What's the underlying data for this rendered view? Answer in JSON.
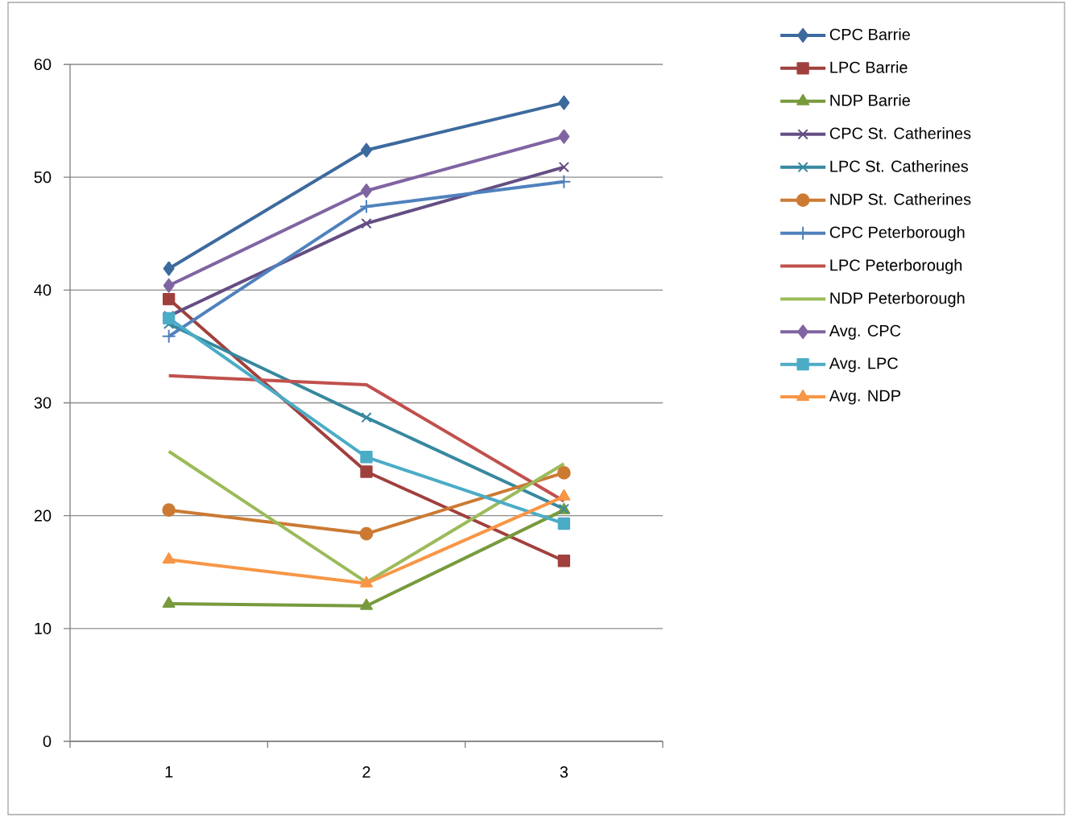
{
  "chart_data": {
    "type": "line",
    "categories": [
      "1",
      "2",
      "3"
    ],
    "series": [
      {
        "name": "CPC Barrie",
        "color": "#3d6a9e",
        "marker": "diamond",
        "values": [
          41.9,
          52.4,
          56.6
        ]
      },
      {
        "name": "LPC Barrie",
        "color": "#a0403d",
        "marker": "square",
        "values": [
          39.2,
          23.9,
          16.0
        ]
      },
      {
        "name": "NDP Barrie",
        "color": "#789a3d",
        "marker": "triangle",
        "values": [
          12.2,
          12.0,
          20.5
        ]
      },
      {
        "name": "CPC St. Catherines",
        "color": "#644e83",
        "marker": "cross",
        "values": [
          37.7,
          45.9,
          50.9
        ]
      },
      {
        "name": "LPC St. Catherines",
        "color": "#36889f",
        "marker": "cross",
        "values": [
          37.0,
          28.7,
          20.6
        ]
      },
      {
        "name": "NDP St. Catherines",
        "color": "#cc7a32",
        "marker": "circle",
        "values": [
          20.5,
          18.4,
          23.8
        ]
      },
      {
        "name": "CPC Peterborough",
        "color": "#4f81bd",
        "marker": "plus",
        "values": [
          35.9,
          47.4,
          49.6
        ]
      },
      {
        "name": "LPC Peterborough",
        "color": "#c0504d",
        "marker": "none",
        "values": [
          32.4,
          31.6,
          21.3
        ]
      },
      {
        "name": "NDP Peterborough",
        "color": "#9bbb59",
        "marker": "none",
        "values": [
          25.7,
          14.1,
          24.6
        ]
      },
      {
        "name": "Avg. CPC",
        "color": "#8064a2",
        "marker": "diamond",
        "values": [
          40.4,
          48.8,
          53.6
        ]
      },
      {
        "name": "Avg. LPC",
        "color": "#4bacc6",
        "marker": "square",
        "values": [
          37.5,
          25.2,
          19.3
        ]
      },
      {
        "name": "Avg. NDP",
        "color": "#f79646",
        "marker": "triangle",
        "values": [
          16.1,
          14.0,
          21.7
        ]
      }
    ],
    "ylim": [
      0,
      60
    ],
    "yticks": [
      0,
      10,
      20,
      30,
      40,
      50,
      60
    ],
    "grid": "y",
    "legend": "right",
    "line_style": "solid"
  }
}
